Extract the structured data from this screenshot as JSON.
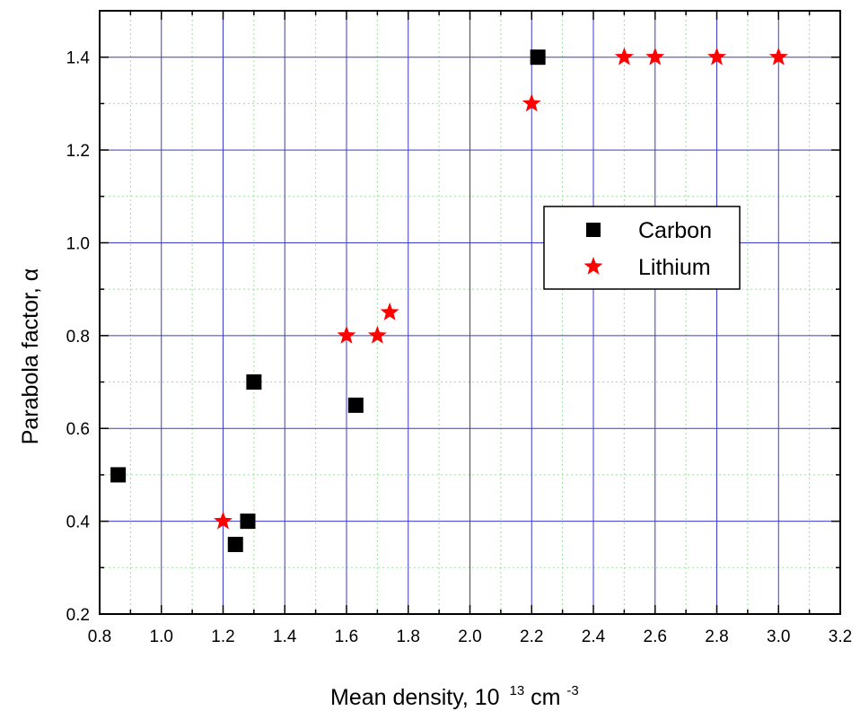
{
  "chart_data": {
    "type": "scatter",
    "xlabel": "Mean density, 10",
    "xlabel_exp": "13",
    "xlabel_unit": "cm",
    "xlabel_unit_exp": "-3",
    "ylabel": "Parabola factor,  α",
    "xlim": [
      0.8,
      3.2
    ],
    "ylim": [
      0.2,
      1.5
    ],
    "x_ticks": [
      "0.8",
      "1.0",
      "1.2",
      "1.4",
      "1.6",
      "1.8",
      "2.0",
      "2.2",
      "2.4",
      "2.6",
      "2.8",
      "3.0",
      "3.2"
    ],
    "y_ticks": [
      "0.2",
      "0.4",
      "0.6",
      "0.8",
      "1.0",
      "1.2",
      "1.4"
    ],
    "grid": {
      "major": true,
      "minor": true,
      "major_color": "#3a3ad0",
      "minor_color": "#9be09b"
    },
    "legend_position": "right-middle",
    "series": [
      {
        "name": "Carbon",
        "marker": "square",
        "color": "#000000",
        "points": [
          [
            0.86,
            0.5
          ],
          [
            1.24,
            0.35
          ],
          [
            1.28,
            0.4
          ],
          [
            1.3,
            0.7
          ],
          [
            1.63,
            0.65
          ],
          [
            2.22,
            1.4
          ]
        ]
      },
      {
        "name": "Lithium",
        "marker": "star",
        "color": "#ff0000",
        "points": [
          [
            1.2,
            0.4
          ],
          [
            1.6,
            0.8
          ],
          [
            1.7,
            0.8
          ],
          [
            1.74,
            0.85
          ],
          [
            2.2,
            1.3
          ],
          [
            2.5,
            1.4
          ],
          [
            2.6,
            1.4
          ],
          [
            2.8,
            1.4
          ],
          [
            3.0,
            1.4
          ]
        ]
      }
    ]
  }
}
